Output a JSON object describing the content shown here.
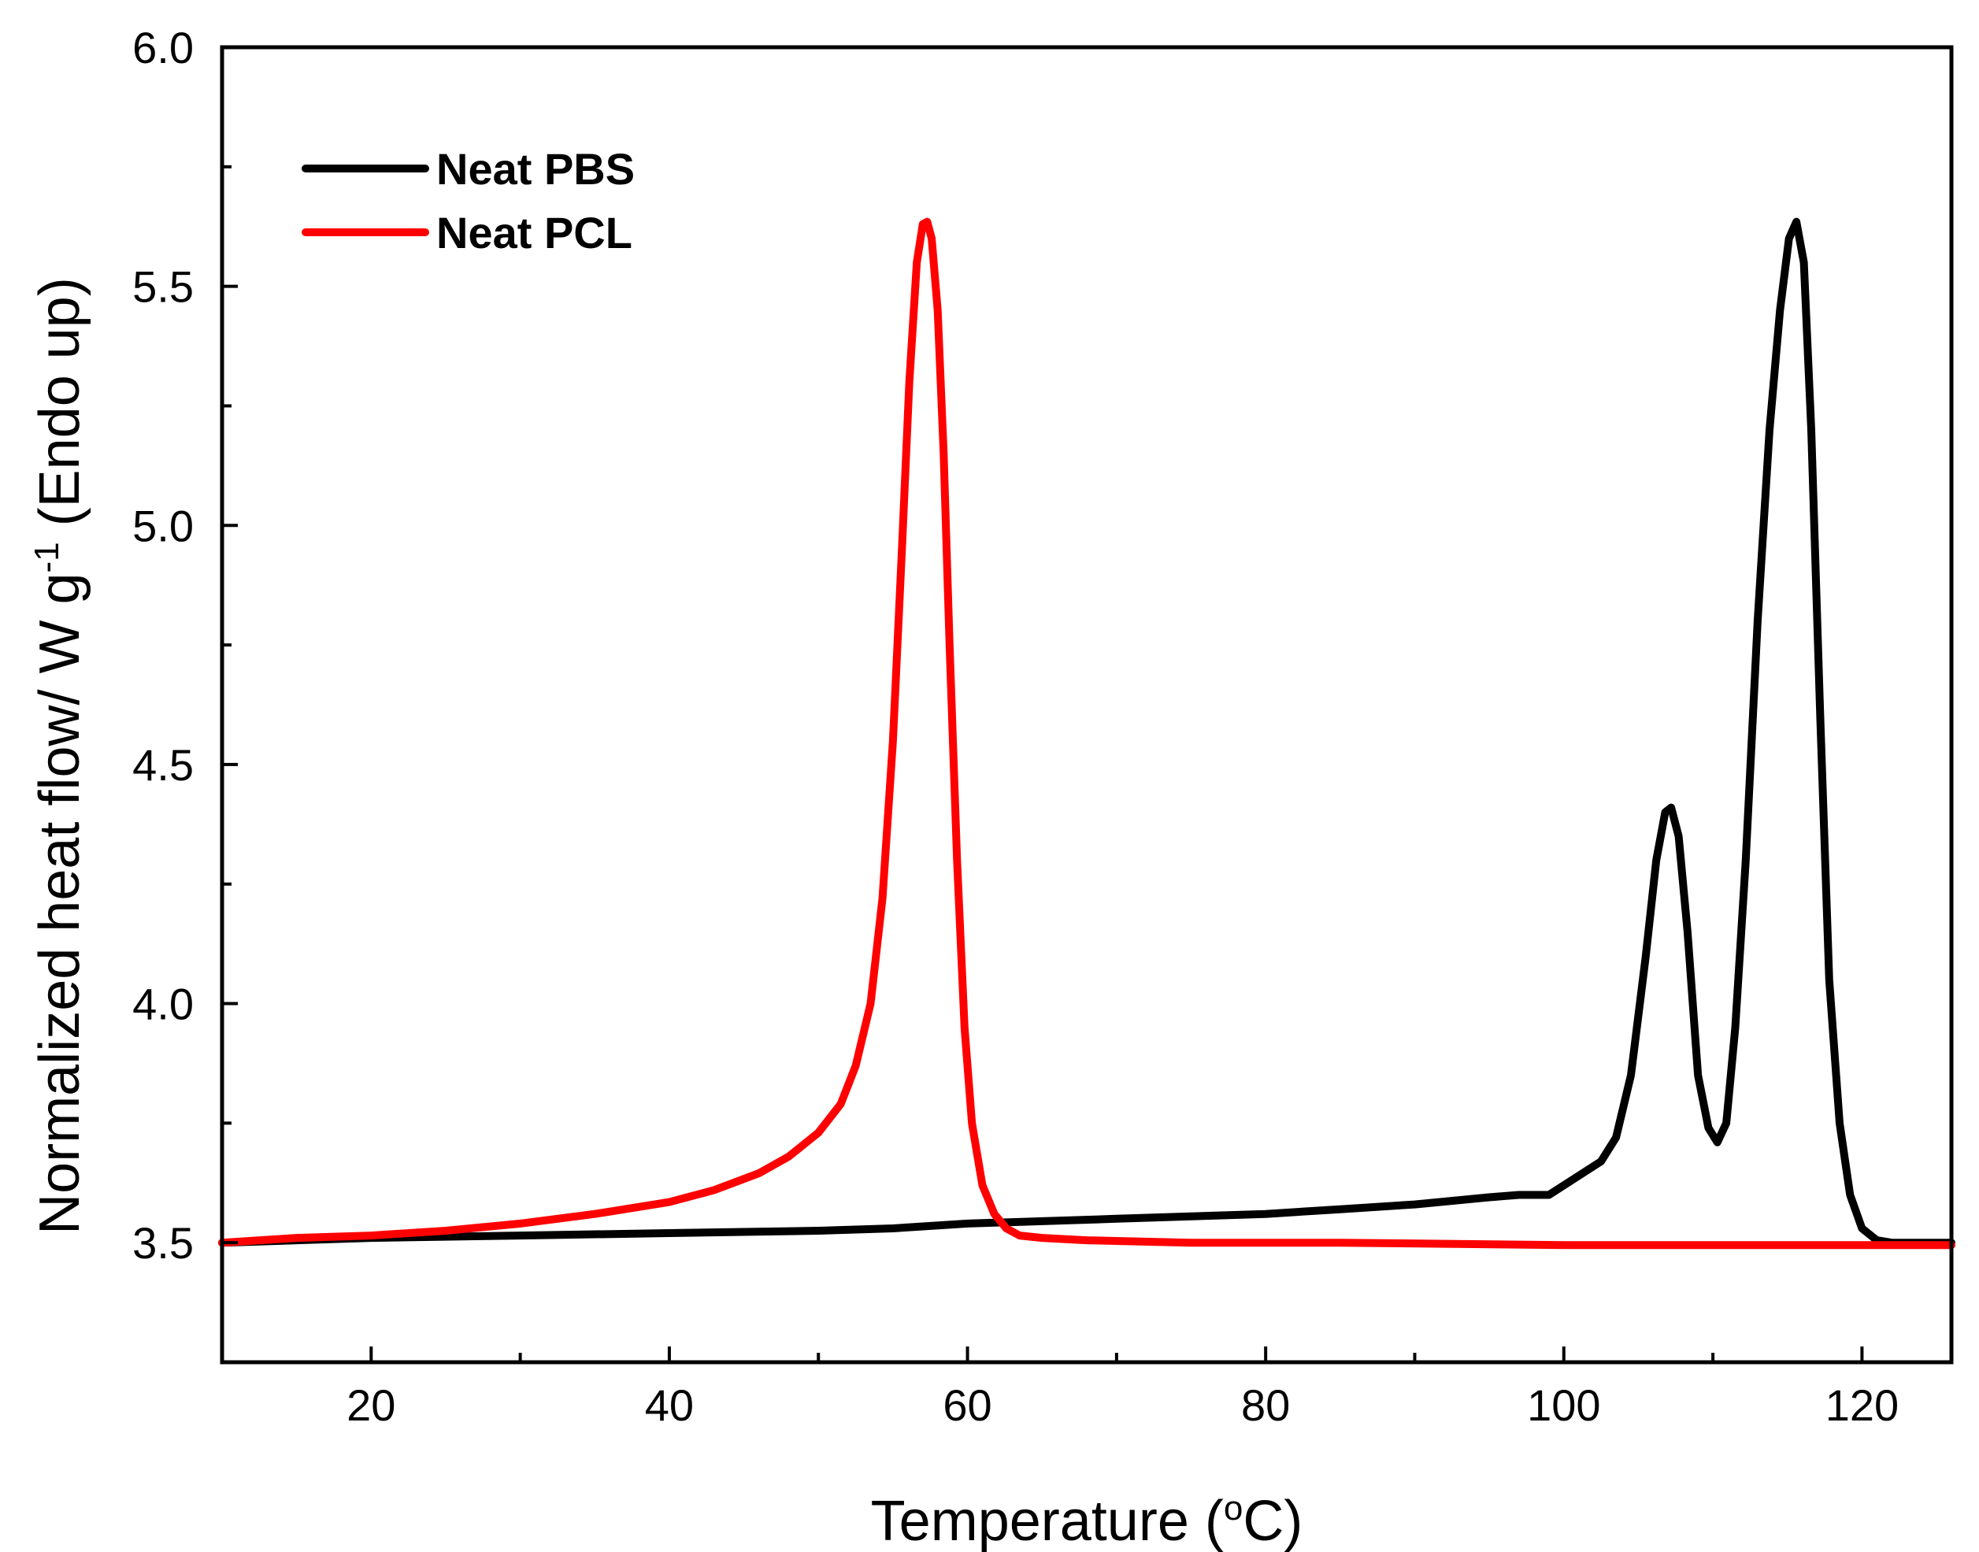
{
  "chart_data": {
    "type": "line",
    "title": "",
    "xlabel": "Temperature (",
    "xlabel_sup": "o",
    "xlabel_unit": "C)",
    "ylabel": "Normalized heat flow/ W g",
    "ylabel_sup": "-1",
    "ylabel_tail": " (Endo up)",
    "xlim": [
      10,
      126
    ],
    "ylim": [
      3.25,
      6.0
    ],
    "x_ticks": [
      20,
      40,
      60,
      80,
      100,
      120
    ],
    "x_tick_labels": [
      "20",
      "40",
      "60",
      "80",
      "100",
      "120"
    ],
    "x_minor_ticks": [
      10,
      30,
      50,
      70,
      90,
      110
    ],
    "y_ticks": [
      3.5,
      4.0,
      4.5,
      5.0,
      5.5,
      6.0
    ],
    "y_tick_labels": [
      "3.5",
      "4.0",
      "4.5",
      "5.0",
      "5.5",
      "6.0"
    ],
    "y_minor_ticks": [
      3.25,
      3.75,
      4.25,
      4.75,
      5.25,
      5.75
    ],
    "grid": false,
    "legend_position": "top-left",
    "series": [
      {
        "name": "Neat PBS",
        "color": "#000000",
        "x": [
          10,
          20,
          30,
          40,
          50,
          55,
          60,
          65,
          70,
          75,
          80,
          85,
          90,
          95,
          97,
          99,
          101,
          102.5,
          103.5,
          104.5,
          105.5,
          106.2,
          106.8,
          107.2,
          107.7,
          108.3,
          109,
          109.7,
          110.3,
          110.9,
          111.5,
          112.2,
          113,
          113.8,
          114.5,
          115.1,
          115.6,
          116.1,
          116.6,
          117.2,
          117.8,
          118.5,
          119.2,
          120,
          121,
          122,
          124,
          126
        ],
        "values": [
          3.5,
          3.51,
          3.515,
          3.52,
          3.525,
          3.53,
          3.54,
          3.545,
          3.55,
          3.555,
          3.56,
          3.57,
          3.58,
          3.595,
          3.6,
          3.6,
          3.64,
          3.67,
          3.72,
          3.85,
          4.1,
          4.3,
          4.4,
          4.41,
          4.35,
          4.15,
          3.85,
          3.74,
          3.71,
          3.75,
          3.95,
          4.3,
          4.8,
          5.2,
          5.45,
          5.6,
          5.635,
          5.55,
          5.2,
          4.6,
          4.05,
          3.75,
          3.6,
          3.53,
          3.505,
          3.5,
          3.5,
          3.5
        ]
      },
      {
        "name": "Neat PCL",
        "color": "#ff0000",
        "x": [
          10,
          15,
          20,
          25,
          30,
          35,
          40,
          43,
          46,
          48,
          50,
          51.5,
          52.5,
          53.5,
          54.3,
          55,
          55.6,
          56.1,
          56.6,
          57,
          57.3,
          57.6,
          58,
          58.4,
          58.8,
          59.3,
          59.8,
          60.3,
          61,
          61.8,
          62.6,
          63.5,
          65,
          68,
          75,
          85,
          100,
          115,
          126
        ],
        "values": [
          3.5,
          3.51,
          3.515,
          3.525,
          3.54,
          3.56,
          3.585,
          3.61,
          3.645,
          3.68,
          3.73,
          3.79,
          3.87,
          4.0,
          4.22,
          4.55,
          4.95,
          5.3,
          5.55,
          5.63,
          5.635,
          5.6,
          5.45,
          5.15,
          4.75,
          4.3,
          3.95,
          3.75,
          3.62,
          3.56,
          3.53,
          3.515,
          3.51,
          3.505,
          3.5,
          3.5,
          3.495,
          3.495,
          3.495
        ]
      }
    ]
  }
}
